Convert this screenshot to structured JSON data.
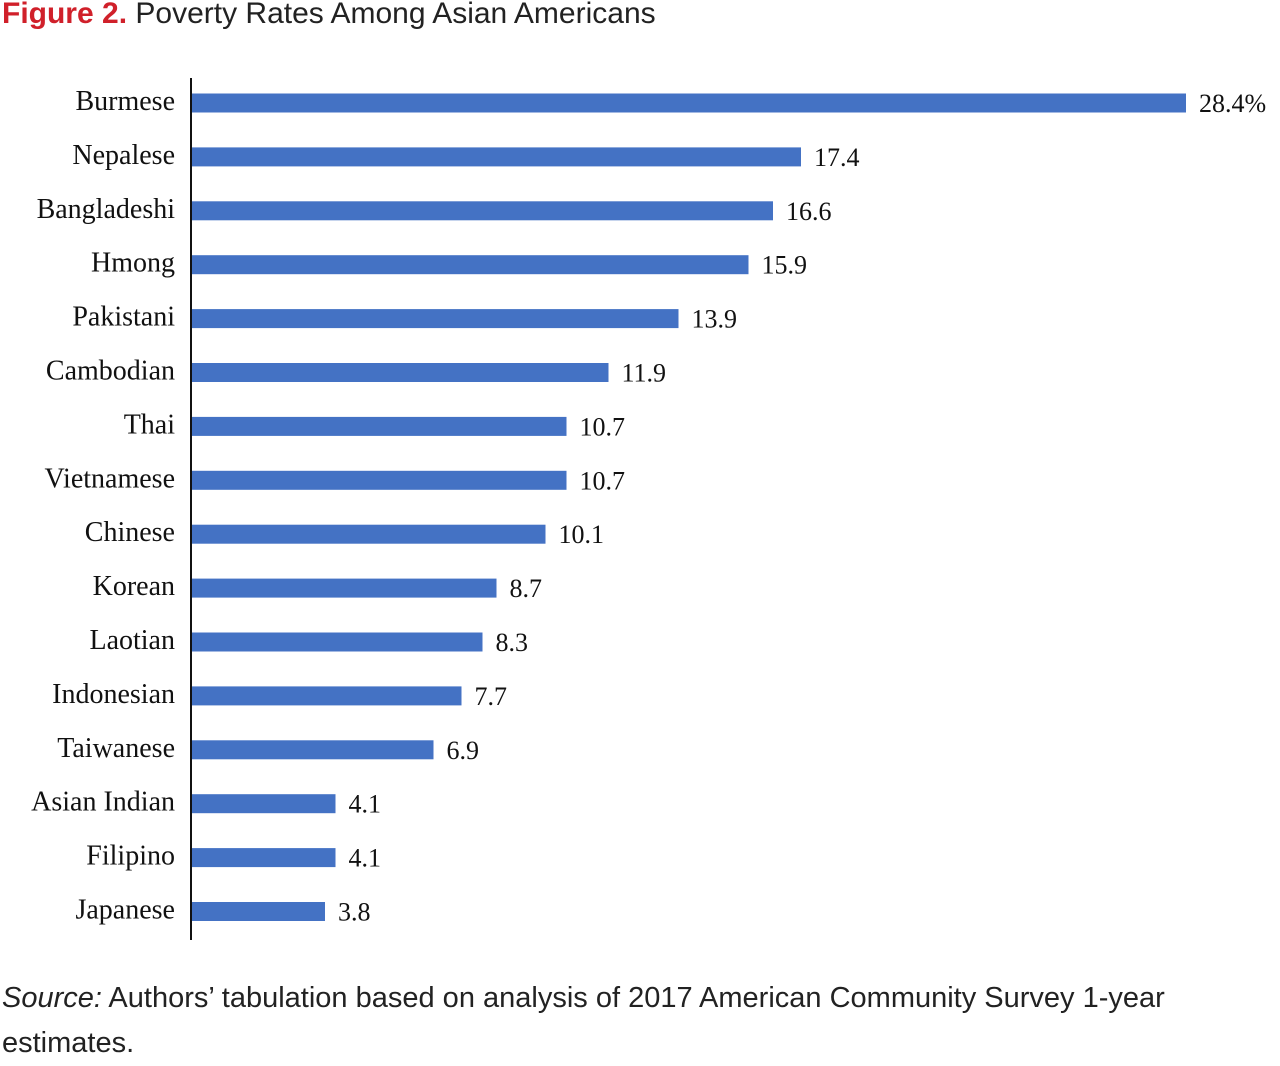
{
  "header": {
    "figure_label": "Figure 2.",
    "title": "Poverty Rates Among Asian Americans"
  },
  "footer": {
    "source_label": "Source:",
    "source_text": "Authors’ tabulation based on analysis of 2017 American Community Survey 1-year estimates."
  },
  "colors": {
    "bar": "#4472c4",
    "figure_label": "#d0202a"
  },
  "chart_data": {
    "type": "bar",
    "orientation": "horizontal",
    "categories": [
      "Burmese",
      "Nepalese",
      "Bangladeshi",
      "Hmong",
      "Pakistani",
      "Cambodian",
      "Thai",
      "Vietnamese",
      "Chinese",
      "Korean",
      "Laotian",
      "Indonesian",
      "Taiwanese",
      "Asian Indian",
      "Filipino",
      "Japanese"
    ],
    "values": [
      28.4,
      17.4,
      16.6,
      15.9,
      13.9,
      11.9,
      10.7,
      10.7,
      10.1,
      8.7,
      8.3,
      7.7,
      6.9,
      4.1,
      4.1,
      3.8
    ],
    "value_labels": [
      "28.4%",
      "17.4",
      "16.6",
      "15.9",
      "13.9",
      "11.9",
      "10.7",
      "10.7",
      "10.1",
      "8.7",
      "8.3",
      "7.7",
      "6.9",
      "4.1",
      "4.1",
      "3.8"
    ],
    "xlim": [
      0,
      28.4
    ],
    "grid": false,
    "legend": "none"
  }
}
